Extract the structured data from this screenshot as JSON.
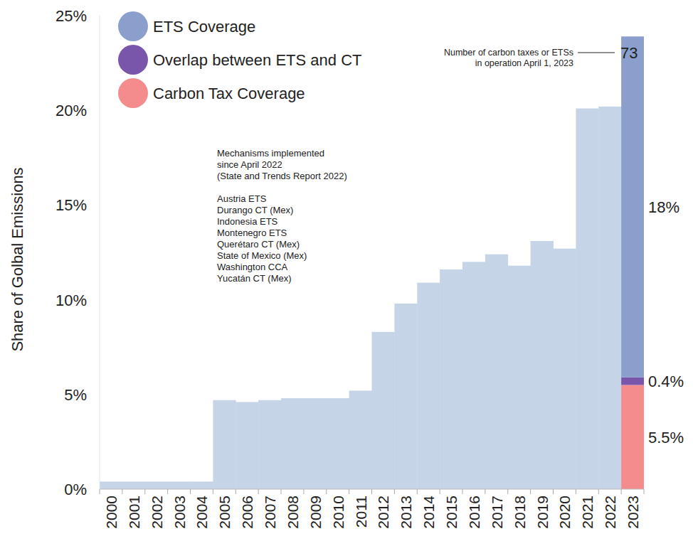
{
  "chart_data": {
    "type": "bar",
    "stacked": true,
    "grid": false,
    "legend": "top-left",
    "data_labels": true,
    "y_label": "Share of Golbal Emissions",
    "categories": [
      "2000",
      "2001",
      "2002",
      "2003",
      "2004",
      "2005",
      "2006",
      "2007",
      "2008",
      "2009",
      "2010",
      "2011",
      "2012",
      "2013",
      "2014",
      "2015",
      "2016",
      "2017",
      "2018",
      "2019",
      "2020",
      "2021",
      "2022",
      "2023"
    ],
    "ylim": [
      0,
      25
    ],
    "yticks": [
      {
        "value": 0,
        "label": "0%"
      },
      {
        "value": 5,
        "label": "5%"
      },
      {
        "value": 10,
        "label": "10%"
      },
      {
        "value": 15,
        "label": "15%"
      },
      {
        "value": 20,
        "label": "20%"
      },
      {
        "value": 25,
        "label": "25%"
      }
    ],
    "series": [
      {
        "color": "#c6d4e8",
        "values": [
          0.4,
          0.4,
          0.4,
          0.4,
          0.4,
          4.7,
          4.6,
          4.7,
          4.8,
          4.8,
          4.8,
          5.2,
          8.3,
          9.8,
          10.9,
          11.6,
          12.0,
          12.4,
          11.8,
          13.1,
          12.7,
          20.1,
          20.2,
          null
        ]
      },
      {
        "name": "Carbon Tax Coverage",
        "color": "#f48b8d",
        "values": [
          null,
          null,
          null,
          null,
          null,
          null,
          null,
          null,
          null,
          null,
          null,
          null,
          null,
          null,
          null,
          null,
          null,
          null,
          null,
          null,
          null,
          null,
          null,
          5.5
        ],
        "value_labels": [
          null,
          null,
          null,
          null,
          null,
          null,
          null,
          null,
          null,
          null,
          null,
          null,
          null,
          null,
          null,
          null,
          null,
          null,
          null,
          null,
          null,
          null,
          null,
          "5.5%"
        ]
      },
      {
        "name": "Overlap between ETS and CT",
        "color": "#7a56aa",
        "values": [
          null,
          null,
          null,
          null,
          null,
          null,
          null,
          null,
          null,
          null,
          null,
          null,
          null,
          null,
          null,
          null,
          null,
          null,
          null,
          null,
          null,
          null,
          null,
          0.4
        ],
        "value_labels": [
          null,
          null,
          null,
          null,
          null,
          null,
          null,
          null,
          null,
          null,
          null,
          null,
          null,
          null,
          null,
          null,
          null,
          null,
          null,
          null,
          null,
          null,
          null,
          "0.4%"
        ]
      },
      {
        "name": "ETS Coverage",
        "color": "#8a9fcc",
        "values": [
          null,
          null,
          null,
          null,
          null,
          null,
          null,
          null,
          null,
          null,
          null,
          null,
          null,
          null,
          null,
          null,
          null,
          null,
          null,
          null,
          null,
          null,
          null,
          18
        ],
        "value_labels": [
          null,
          null,
          null,
          null,
          null,
          null,
          null,
          null,
          null,
          null,
          null,
          null,
          null,
          null,
          null,
          null,
          null,
          null,
          null,
          null,
          null,
          null,
          null,
          "18%"
        ]
      }
    ],
    "annotations": [
      {
        "text": [
          "Number of carbon taxes or ETSs",
          "in operation April 1, 2023"
        ],
        "value": 73
      }
    ],
    "note": {
      "title": [
        "Mechanisms implemented",
        "since April 2022",
        "(State and Trends Report 2022)"
      ],
      "items": [
        "Austria ETS",
        "Durango CT (Mex)",
        "Indonesia ETS",
        "Montenegro ETS",
        "Querétaro CT (Mex)",
        "State of Mexico (Mex)",
        "Washington CCA",
        "Yucatán CT (Mex)"
      ]
    }
  }
}
